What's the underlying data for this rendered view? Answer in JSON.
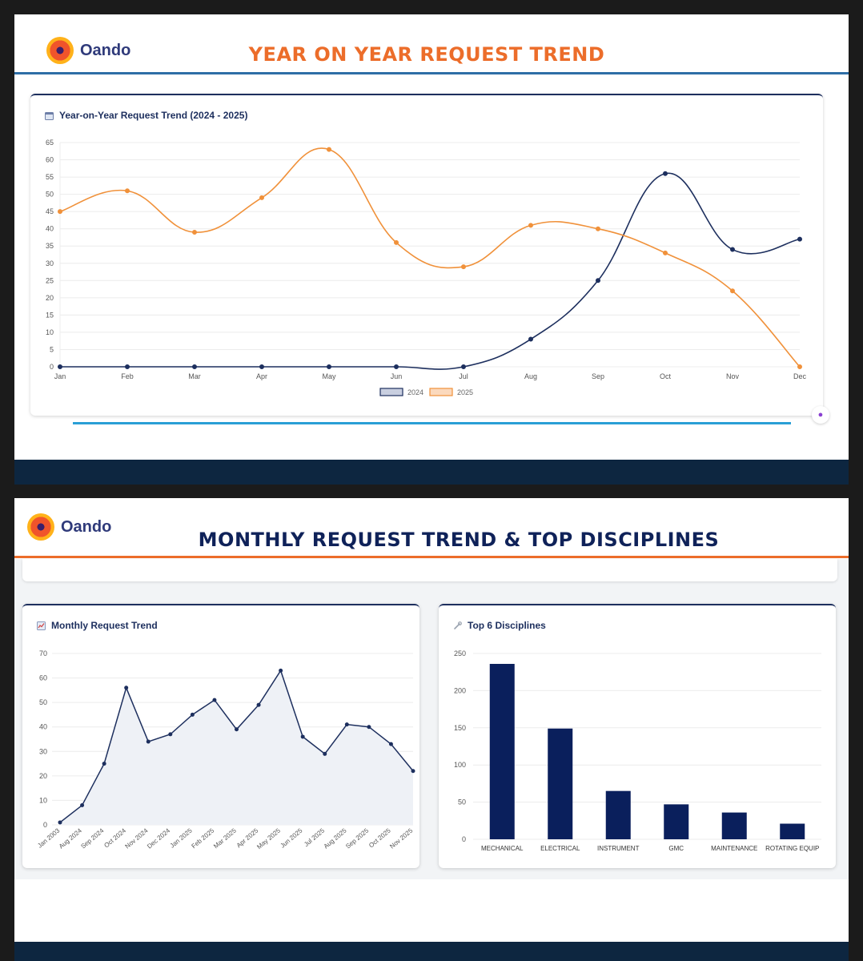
{
  "brand": {
    "name": "Oando"
  },
  "slide1": {
    "title": "YEAR ON YEAR REQUEST TREND",
    "card_title": "Year-on-Year Request Trend (2024 - 2025)",
    "card_icon": "calendar-icon",
    "badge_icon": "brain-icon"
  },
  "slide2": {
    "title": "MONTHLY REQUEST TREND & TOP DISCIPLINES",
    "trend_title": "Monthly Request Trend",
    "trend_icon": "chart-line-icon",
    "disc_title": "Top 6 Disciplines",
    "disc_icon": "wrench-icon"
  },
  "colors": {
    "navy": "#1d2f5e",
    "orange": "#f0913a",
    "bar": "#0a1f5c",
    "accent_blue": "#2a9fd6"
  },
  "chart_data": [
    {
      "type": "line",
      "title": "Year-on-Year Request Trend (2024 - 2025)",
      "categories": [
        "Jan",
        "Feb",
        "Mar",
        "Apr",
        "May",
        "Jun",
        "Jul",
        "Aug",
        "Sep",
        "Oct",
        "Nov",
        "Dec"
      ],
      "series": [
        {
          "name": "2024",
          "values": [
            0,
            0,
            0,
            0,
            0,
            0,
            0,
            8,
            25,
            56,
            34,
            37
          ],
          "color": "#1d2f5e"
        },
        {
          "name": "2025",
          "values": [
            45,
            51,
            39,
            49,
            63,
            36,
            29,
            41,
            40,
            33,
            22,
            0
          ],
          "color": "#f0913a"
        }
      ],
      "ylim": [
        0,
        65
      ],
      "yticks": [
        0,
        5,
        10,
        15,
        20,
        25,
        30,
        35,
        40,
        45,
        50,
        55,
        60,
        65
      ],
      "grid": true,
      "legend": "bottom"
    },
    {
      "type": "area",
      "title": "Monthly Request Trend",
      "categories": [
        "Jan 2003",
        "Aug 2024",
        "Sep 2024",
        "Oct 2024",
        "Nov 2024",
        "Dec 2024",
        "Jan 2025",
        "Feb 2025",
        "Mar 2025",
        "Apr 2025",
        "May 2025",
        "Jun 2025",
        "Jul 2025",
        "Aug 2025",
        "Sep 2025",
        "Oct 2025",
        "Nov 2025"
      ],
      "values": [
        1,
        8,
        25,
        56,
        34,
        37,
        45,
        51,
        39,
        49,
        63,
        36,
        29,
        41,
        40,
        33,
        22
      ],
      "ylim": [
        0,
        70
      ],
      "yticks": [
        0,
        10,
        20,
        30,
        40,
        50,
        60,
        70
      ],
      "grid": true
    },
    {
      "type": "bar",
      "title": "Top 6 Disciplines",
      "categories": [
        "MECHANICAL",
        "ELECTRICAL",
        "INSTRUMENT",
        "GMC",
        "MAINTENANCE",
        "ROTATING EQUIP"
      ],
      "values": [
        236,
        149,
        65,
        47,
        36,
        21
      ],
      "ylim": [
        0,
        250
      ],
      "yticks": [
        0,
        50,
        100,
        150,
        200,
        250
      ],
      "grid": true
    }
  ]
}
